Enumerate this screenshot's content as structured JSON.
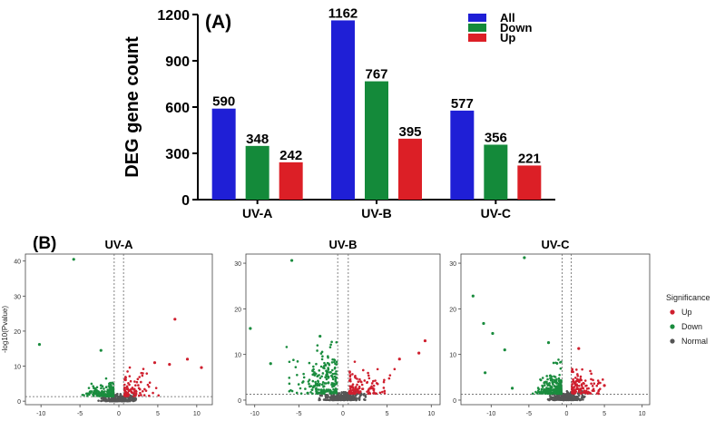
{
  "chart_data": [
    {
      "type": "bar",
      "panel_label": "(A)",
      "title": "",
      "xlabel": "",
      "ylabel": "DEG gene count",
      "ylim": [
        0,
        1200
      ],
      "yticks": [
        0,
        300,
        600,
        900,
        1200
      ],
      "categories": [
        "UV-A",
        "UV-B",
        "UV-C"
      ],
      "series": [
        {
          "name": "All",
          "values": [
            590,
            1162,
            577
          ],
          "color": "#1f1fd6"
        },
        {
          "name": "Down",
          "values": [
            348,
            767,
            356
          ],
          "color": "#148a3a"
        },
        {
          "name": "Up",
          "values": [
            242,
            395,
            221
          ],
          "color": "#dc1f26"
        }
      ],
      "data_labels": true,
      "legend_position": "top-right",
      "grid": false
    },
    {
      "type": "scatter",
      "panel_label": "(B)",
      "panels": [
        {
          "title": "UV-A",
          "ylabel": "-log10(Pvalue)",
          "xlim": [
            -12,
            12
          ],
          "ylim": [
            -1,
            42
          ],
          "xticks": [
            -10,
            -5,
            0,
            5,
            10
          ],
          "yticks": [
            0,
            10,
            20,
            30,
            40
          ],
          "fc_thresholds": [
            -0.6,
            0.6
          ],
          "p_threshold": 1.3,
          "outliers": [
            {
              "x": -5.8,
              "y": 40.5,
              "group": "Down"
            },
            {
              "x": -10.2,
              "y": 16.2,
              "group": "Down"
            },
            {
              "x": -2.3,
              "y": 14.5,
              "group": "Down"
            },
            {
              "x": 7.2,
              "y": 23.4,
              "group": "Up"
            },
            {
              "x": 8.8,
              "y": 12.0,
              "group": "Up"
            },
            {
              "x": 10.6,
              "y": 9.6,
              "group": "Up"
            },
            {
              "x": 6.5,
              "y": 10.5,
              "group": "Up"
            },
            {
              "x": 4.6,
              "y": 11.0,
              "group": "Up"
            }
          ]
        },
        {
          "title": "UV-B",
          "ylabel": "",
          "xlim": [
            -11,
            11
          ],
          "ylim": [
            -1,
            32
          ],
          "xticks": [
            -10,
            -5,
            0,
            5,
            10
          ],
          "yticks": [
            0,
            10,
            20,
            30
          ],
          "fc_thresholds": [
            -0.6,
            0.6
          ],
          "p_threshold": 1.3,
          "outliers": [
            {
              "x": -5.8,
              "y": 30.6,
              "group": "Down"
            },
            {
              "x": -10.5,
              "y": 15.7,
              "group": "Down"
            },
            {
              "x": -8.2,
              "y": 8.0,
              "group": "Down"
            },
            {
              "x": -2.6,
              "y": 14.0,
              "group": "Down"
            },
            {
              "x": 9.3,
              "y": 13.0,
              "group": "Up"
            },
            {
              "x": 8.6,
              "y": 10.3,
              "group": "Up"
            },
            {
              "x": 6.4,
              "y": 9.0,
              "group": "Up"
            }
          ]
        },
        {
          "title": "UV-C",
          "ylabel": "",
          "xlim": [
            -14,
            11
          ],
          "ylim": [
            -1,
            32
          ],
          "xticks": [
            -10,
            -5,
            0,
            5,
            10
          ],
          "yticks": [
            0,
            10,
            20,
            30
          ],
          "fc_thresholds": [
            -0.6,
            0.6
          ],
          "p_threshold": 1.3,
          "outliers": [
            {
              "x": -5.6,
              "y": 31.2,
              "group": "Down"
            },
            {
              "x": -12.4,
              "y": 22.8,
              "group": "Down"
            },
            {
              "x": -11.0,
              "y": 16.8,
              "group": "Down"
            },
            {
              "x": -9.8,
              "y": 14.6,
              "group": "Down"
            },
            {
              "x": -8.2,
              "y": 11.0,
              "group": "Down"
            },
            {
              "x": -10.8,
              "y": 6.0,
              "group": "Down"
            },
            {
              "x": -7.2,
              "y": 2.6,
              "group": "Down"
            },
            {
              "x": -2.4,
              "y": 12.6,
              "group": "Down"
            },
            {
              "x": 1.6,
              "y": 11.3,
              "group": "Up"
            },
            {
              "x": 5.0,
              "y": 3.2,
              "group": "Up"
            }
          ]
        }
      ],
      "legend": {
        "title": "Significance",
        "items": [
          {
            "name": "Up",
            "color": "#cf1f2e"
          },
          {
            "name": "Down",
            "color": "#1a8c3e"
          },
          {
            "name": "Normal",
            "color": "#555555"
          }
        ]
      }
    }
  ]
}
